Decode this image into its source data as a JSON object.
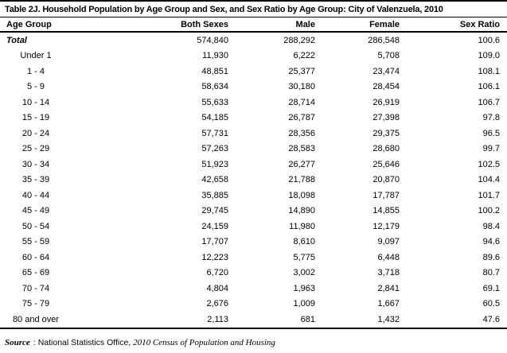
{
  "title": "Table 2J. Household Population by Age Group and Sex, and Sex Ratio by Age Group: City of Valenzuela, 2010",
  "chart_data": {
    "type": "table",
    "columns": [
      "Age Group",
      "Both Sexes",
      "Male",
      "Female",
      "Sex Ratio"
    ],
    "total_row": [
      "Total",
      "574,840",
      "288,292",
      "286,548",
      "100.6"
    ],
    "rows": [
      [
        "Under 1",
        "11,930",
        "6,222",
        "5,708",
        "109.0"
      ],
      [
        "1 - 4",
        "48,851",
        "25,377",
        "23,474",
        "108.1"
      ],
      [
        "5 - 9",
        "58,634",
        "30,180",
        "28,454",
        "106.1"
      ],
      [
        "10 - 14",
        "55,633",
        "28,714",
        "26,919",
        "106.7"
      ],
      [
        "15 - 19",
        "54,185",
        "26,787",
        "27,398",
        "97.8"
      ],
      [
        "20 - 24",
        "57,731",
        "28,356",
        "29,375",
        "96.5"
      ],
      [
        "25 - 29",
        "57,263",
        "28,583",
        "28,680",
        "99.7"
      ],
      [
        "30 - 34",
        "51,923",
        "26,277",
        "25,646",
        "102.5"
      ],
      [
        "35 - 39",
        "42,658",
        "21,788",
        "20,870",
        "104.4"
      ],
      [
        "40 - 44",
        "35,885",
        "18,098",
        "17,787",
        "101.7"
      ],
      [
        "45 - 49",
        "29,745",
        "14,890",
        "14,855",
        "100.2"
      ],
      [
        "50 - 54",
        "24,159",
        "11,980",
        "12,179",
        "98.4"
      ],
      [
        "55 - 59",
        "17,707",
        "8,610",
        "9,097",
        "94.6"
      ],
      [
        "60 - 64",
        "12,223",
        "5,775",
        "6,448",
        "89.6"
      ],
      [
        "65 - 69",
        "6,720",
        "3,002",
        "3,718",
        "80.7"
      ],
      [
        "70 - 74",
        "4,804",
        "1,963",
        "2,841",
        "69.1"
      ],
      [
        "75 - 79",
        "2,676",
        "1,009",
        "1,667",
        "60.5"
      ],
      [
        "80 and over",
        "2,113",
        "681",
        "1,432",
        "47.6"
      ]
    ]
  },
  "source": {
    "label": "Source",
    "separator": ":",
    "org": "National Statistics Office,",
    "publication": "2010 Census of Population and Housing"
  }
}
